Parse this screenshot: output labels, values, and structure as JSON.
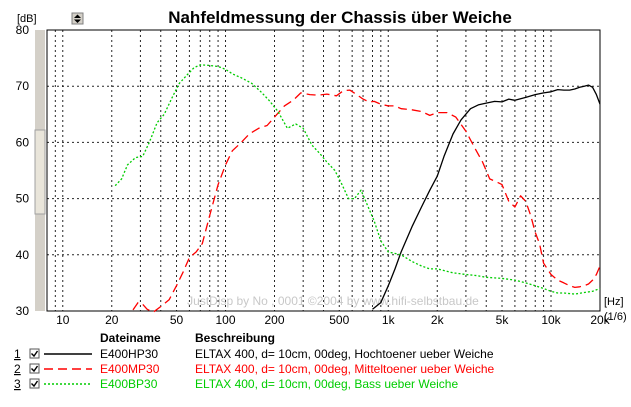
{
  "header": {
    "ylabel_unit": "[dB]",
    "spinner": "▲▼"
  },
  "legend": {
    "head_file": "Dateiname",
    "head_desc": "Beschreibung",
    "rows": [
      {
        "num": "1",
        "file": "E400HP30",
        "desc": "ELTAX 400, d= 10cm, 00deg, Hochtoener ueber Weiche",
        "color": "#000000",
        "dash": "solid"
      },
      {
        "num": "2",
        "file": "E400MP30",
        "desc": "ELTAX 400, d= 10cm, 00deg, Mitteltoener ueber Weiche",
        "color": "#ff0000",
        "dash": "dashed"
      },
      {
        "num": "3",
        "file": "E400BP30",
        "desc": "ELTAX 400, d= 10cm, 00deg, Bass ueber Weiche",
        "color": "#00cc00",
        "dash": "dotted"
      }
    ]
  },
  "colors": {
    "scrollbar": "#d4d0c8",
    "scroll_thumb": "#e9e5da"
  },
  "chart_data": {
    "type": "line",
    "title": "Nahfeldmessung der Chassis über Weiche",
    "ylabel": "[dB]",
    "xlabel": "[Hz]",
    "smoothing_label": "(1/6)",
    "watermark": "JustDisp by No , 0001 ©2004 by www.hifi-selbstbau.de",
    "xscale": "log",
    "xlim": [
      8,
      20000
    ],
    "ylim": [
      30,
      80
    ],
    "yticks": [
      30,
      40,
      50,
      60,
      70,
      80
    ],
    "xticks": [
      {
        "v": 10,
        "label": "10"
      },
      {
        "v": 20,
        "label": "20"
      },
      {
        "v": 50,
        "label": "50"
      },
      {
        "v": 100,
        "label": "100"
      },
      {
        "v": 200,
        "label": "200"
      },
      {
        "v": 500,
        "label": "500"
      },
      {
        "v": 1000,
        "label": "1k"
      },
      {
        "v": 2000,
        "label": "2k"
      },
      {
        "v": 5000,
        "label": "5k"
      },
      {
        "v": 10000,
        "label": "10k"
      },
      {
        "v": 20000,
        "label": "20k"
      }
    ],
    "grid": true,
    "series": [
      {
        "name": "E400HP30",
        "color": "#000000",
        "points": [
          [
            800,
            30.3
          ],
          [
            900,
            31.5
          ],
          [
            1000,
            34.5
          ],
          [
            1100,
            37.5
          ],
          [
            1200,
            40.5
          ],
          [
            1400,
            45
          ],
          [
            1600,
            48.5
          ],
          [
            1800,
            51.5
          ],
          [
            2000,
            54
          ],
          [
            2200,
            57.5
          ],
          [
            2500,
            61.5
          ],
          [
            2800,
            64
          ],
          [
            3200,
            66
          ],
          [
            3600,
            66.7
          ],
          [
            4000,
            67
          ],
          [
            4500,
            67.3
          ],
          [
            5000,
            67.2
          ],
          [
            5500,
            67.7
          ],
          [
            6000,
            67.5
          ],
          [
            7000,
            68
          ],
          [
            8000,
            68.5
          ],
          [
            9000,
            68.8
          ],
          [
            10000,
            69
          ],
          [
            11000,
            69.4
          ],
          [
            12000,
            69.3
          ],
          [
            13000,
            69.3
          ],
          [
            14000,
            69.5
          ],
          [
            15000,
            69.8
          ],
          [
            16000,
            70
          ],
          [
            17000,
            70.2
          ],
          [
            18000,
            69.8
          ],
          [
            19000,
            68.5
          ],
          [
            20000,
            66.8
          ]
        ]
      },
      {
        "name": "E400MP30",
        "color": "#ff0000",
        "points": [
          [
            27,
            30.2
          ],
          [
            29,
            31.5
          ],
          [
            31,
            31.2
          ],
          [
            33,
            30.3
          ],
          [
            36,
            29.8
          ],
          [
            40,
            30.8
          ],
          [
            45,
            32
          ],
          [
            50,
            34.5
          ],
          [
            55,
            37
          ],
          [
            60,
            39.5
          ],
          [
            66,
            40.5
          ],
          [
            72,
            42
          ],
          [
            80,
            47
          ],
          [
            90,
            52.5
          ],
          [
            100,
            56
          ],
          [
            110,
            58.5
          ],
          [
            125,
            60
          ],
          [
            140,
            61.5
          ],
          [
            160,
            62.5
          ],
          [
            180,
            63
          ],
          [
            200,
            64.5
          ],
          [
            230,
            66.5
          ],
          [
            260,
            67.5
          ],
          [
            290,
            68.8
          ],
          [
            330,
            68.5
          ],
          [
            370,
            68.4
          ],
          [
            420,
            68.6
          ],
          [
            480,
            68.3
          ],
          [
            530,
            69.2
          ],
          [
            580,
            69.3
          ],
          [
            640,
            68.5
          ],
          [
            700,
            67.7
          ],
          [
            760,
            67.2
          ],
          [
            820,
            67.3
          ],
          [
            900,
            66.8
          ],
          [
            1000,
            66.5
          ],
          [
            1100,
            66.5
          ],
          [
            1200,
            66
          ],
          [
            1400,
            65.8
          ],
          [
            1600,
            65.5
          ],
          [
            1800,
            64.8
          ],
          [
            2000,
            65.3
          ],
          [
            2300,
            65.3
          ],
          [
            2600,
            64.5
          ],
          [
            3000,
            62
          ],
          [
            3400,
            59
          ],
          [
            3800,
            56.5
          ],
          [
            4200,
            53.5
          ],
          [
            4600,
            53
          ],
          [
            5000,
            52.5
          ],
          [
            5500,
            49.5
          ],
          [
            6000,
            48.5
          ],
          [
            6500,
            50.5
          ],
          [
            7000,
            49.5
          ],
          [
            7500,
            47
          ],
          [
            8000,
            44
          ],
          [
            8500,
            42
          ],
          [
            9000,
            38.5
          ],
          [
            10000,
            36.5
          ],
          [
            11000,
            35.5
          ],
          [
            12000,
            35
          ],
          [
            13000,
            34.5
          ],
          [
            14000,
            34.2
          ],
          [
            15000,
            34.3
          ],
          [
            16000,
            34.5
          ],
          [
            17000,
            34.8
          ],
          [
            18000,
            35.5
          ],
          [
            19000,
            36.5
          ],
          [
            20000,
            38
          ]
        ]
      },
      {
        "name": "E400BP30",
        "color": "#00cc00",
        "points": [
          [
            21,
            52.3
          ],
          [
            23,
            53.5
          ],
          [
            25,
            56
          ],
          [
            28,
            57.3
          ],
          [
            31,
            57.5
          ],
          [
            34,
            60
          ],
          [
            38,
            63.5
          ],
          [
            42,
            65
          ],
          [
            47,
            68
          ],
          [
            52,
            70.5
          ],
          [
            58,
            72
          ],
          [
            64,
            73.3
          ],
          [
            70,
            73.8
          ],
          [
            80,
            73.7
          ],
          [
            90,
            73.5
          ],
          [
            100,
            73
          ],
          [
            110,
            72.2
          ],
          [
            125,
            71.5
          ],
          [
            145,
            70.5
          ],
          [
            165,
            69
          ],
          [
            185,
            67.5
          ],
          [
            210,
            65.5
          ],
          [
            240,
            62.5
          ],
          [
            270,
            63.3
          ],
          [
            300,
            62.5
          ],
          [
            340,
            59.5
          ],
          [
            380,
            58
          ],
          [
            420,
            56.5
          ],
          [
            470,
            55
          ],
          [
            520,
            52.5
          ],
          [
            570,
            50
          ],
          [
            620,
            50
          ],
          [
            680,
            51.5
          ],
          [
            740,
            49
          ],
          [
            820,
            46
          ],
          [
            900,
            42.5
          ],
          [
            1000,
            40.5
          ],
          [
            1200,
            40
          ],
          [
            1400,
            38.8
          ],
          [
            1600,
            38
          ],
          [
            1800,
            37.5
          ],
          [
            2000,
            37.5
          ],
          [
            2500,
            36.8
          ],
          [
            3000,
            36.5
          ],
          [
            3500,
            36.3
          ],
          [
            4000,
            36
          ],
          [
            5000,
            35.8
          ],
          [
            6000,
            35.5
          ],
          [
            7000,
            35
          ],
          [
            8000,
            34.5
          ],
          [
            9000,
            34
          ],
          [
            10000,
            33.5
          ],
          [
            11000,
            33.2
          ],
          [
            12000,
            33.2
          ],
          [
            14000,
            33
          ],
          [
            16000,
            33.3
          ],
          [
            18000,
            33.5
          ],
          [
            20000,
            34
          ]
        ]
      }
    ]
  }
}
